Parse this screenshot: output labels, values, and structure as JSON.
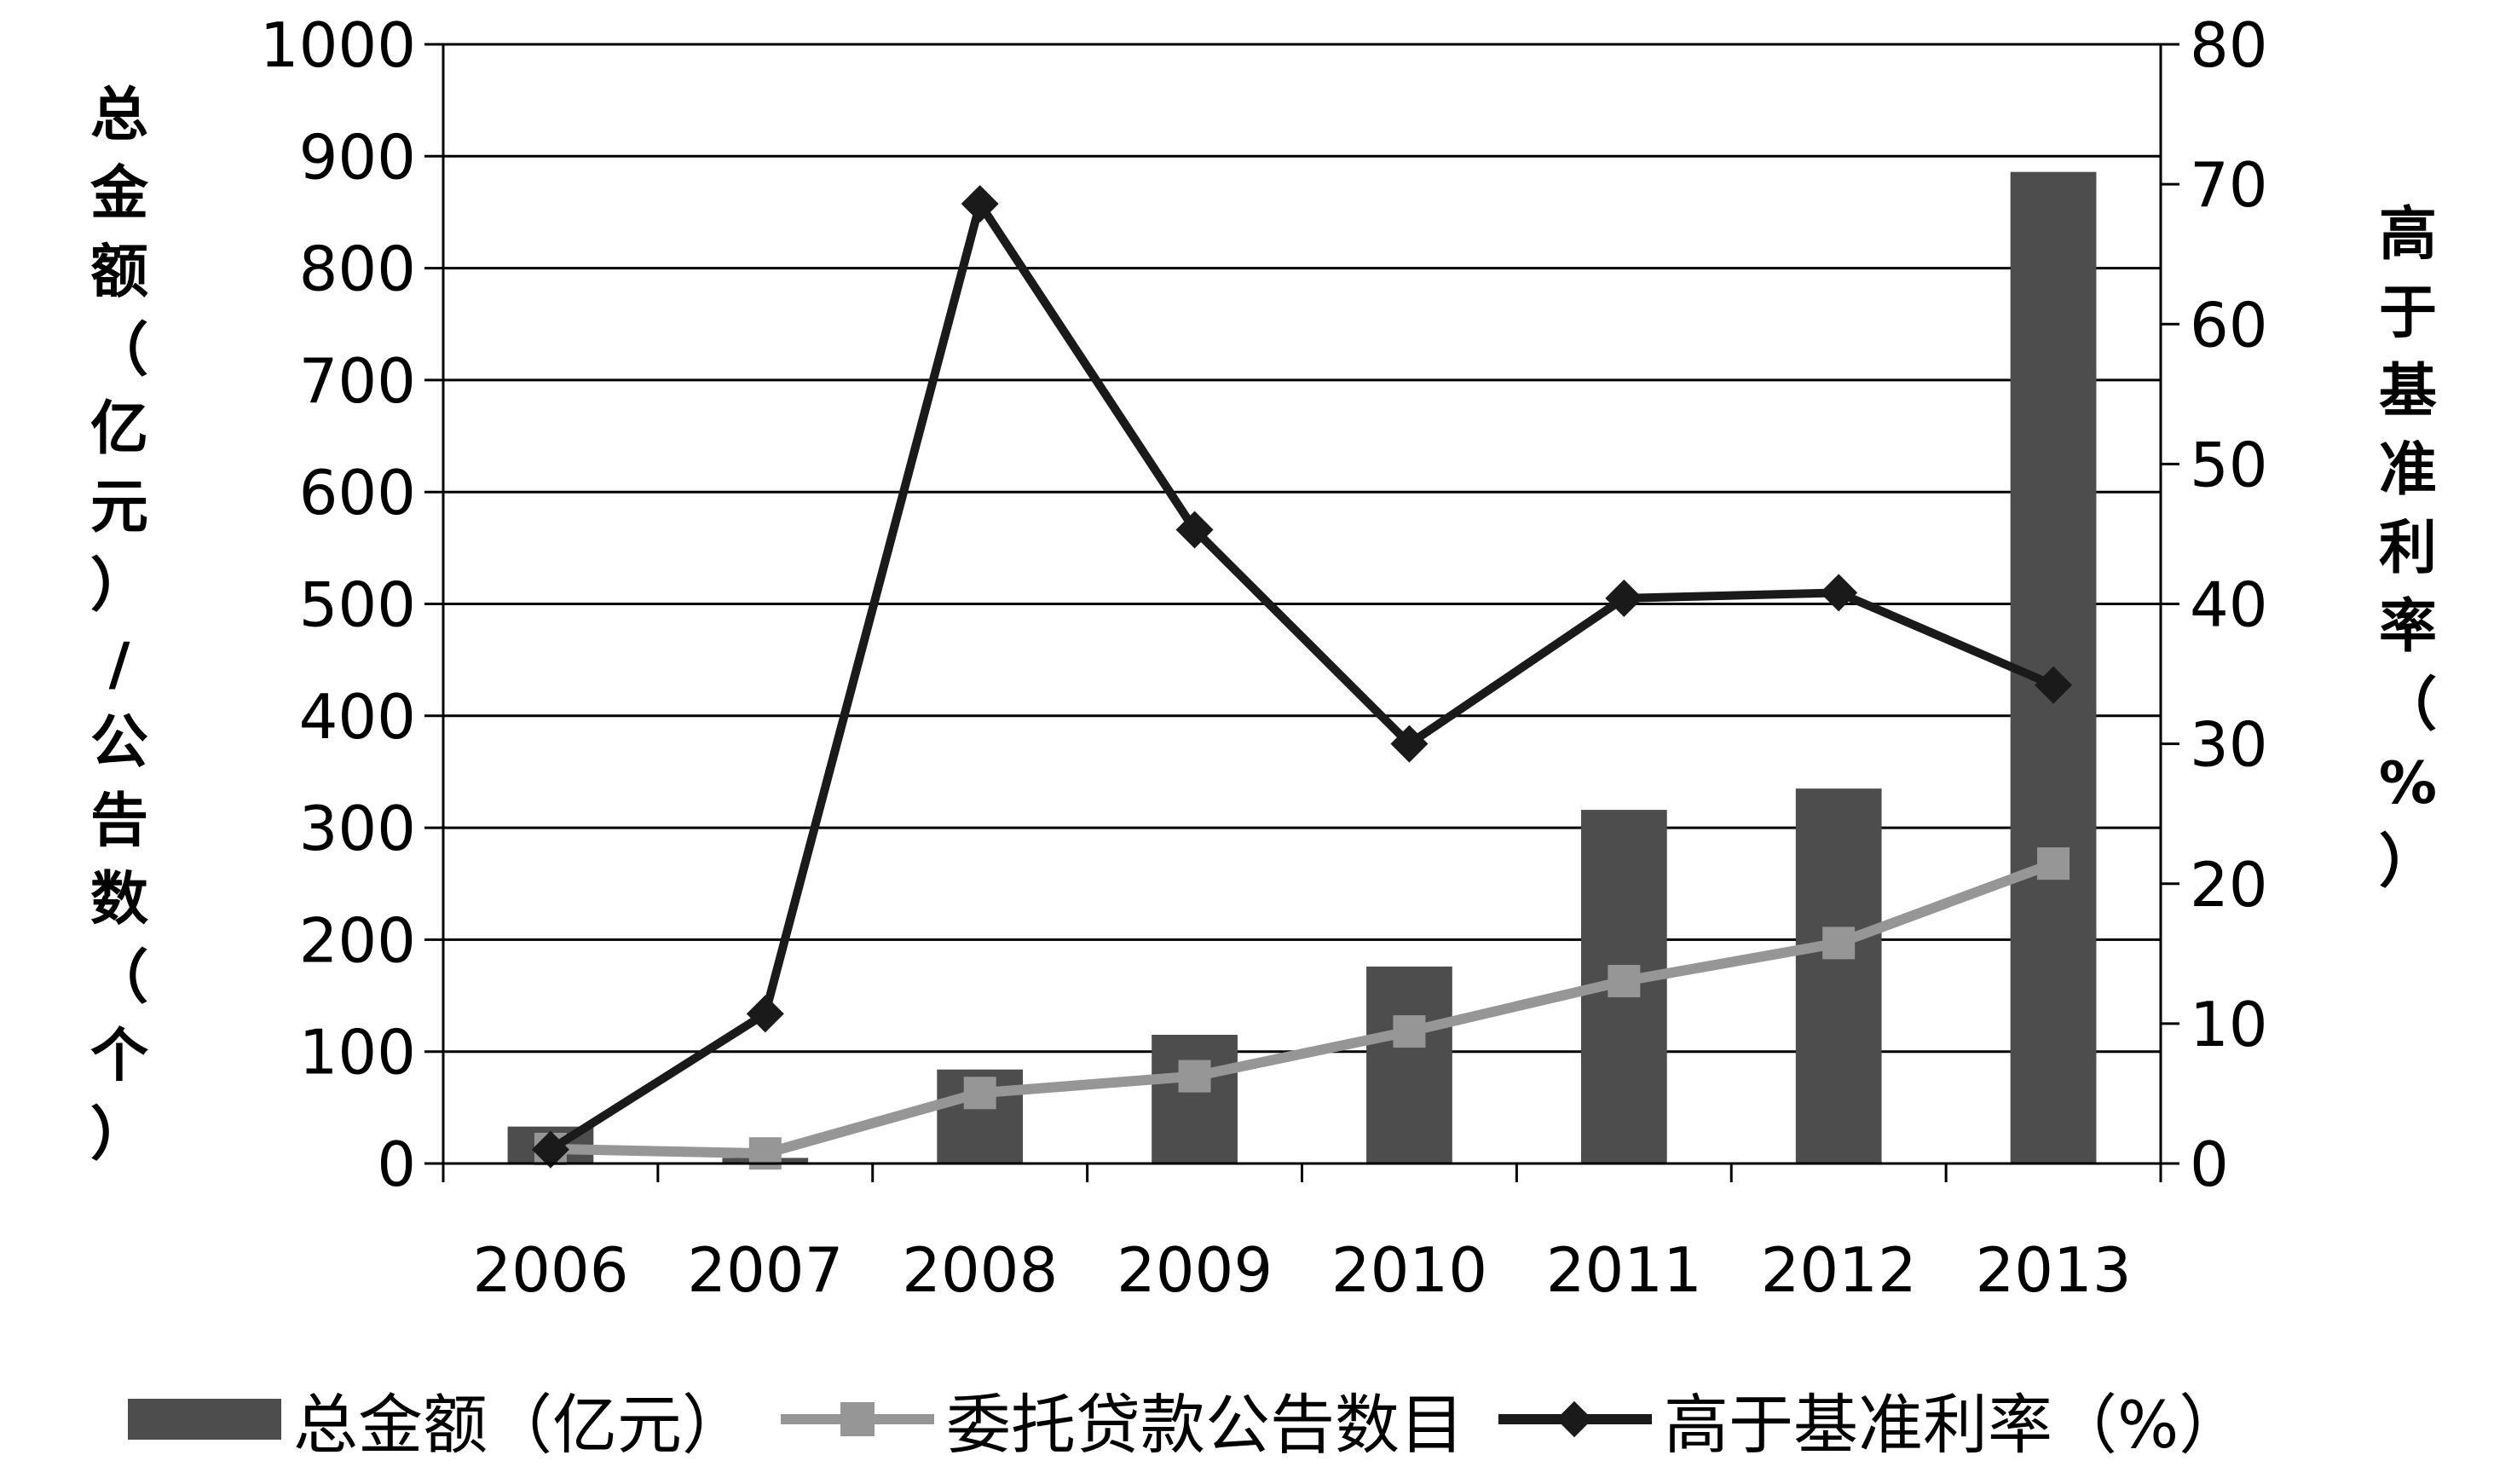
{
  "chart_data": {
    "type": "bar+line",
    "categories": [
      "2006",
      "2007",
      "2008",
      "2009",
      "2010",
      "2011",
      "2012",
      "2013"
    ],
    "series": [
      {
        "name": "总金额（亿元）",
        "kind": "bar",
        "axis": "left",
        "color": "#4d4d4d",
        "values": [
          33,
          5,
          84,
          115,
          176,
          316,
          335,
          886
        ]
      },
      {
        "name": "委托贷款公告数目",
        "kind": "line",
        "marker": "square",
        "axis": "left",
        "color": "#969696",
        "values": [
          13,
          9,
          63,
          78,
          118,
          163,
          197,
          268
        ]
      },
      {
        "name": "高于基准利率（%）",
        "kind": "line",
        "marker": "diamond",
        "axis": "right",
        "color": "#1a1a1a",
        "values": [
          1,
          10.7,
          68.6,
          45.3,
          30,
          40.4,
          40.8,
          34.2
        ]
      }
    ],
    "y_left": {
      "label": "总金额（亿元）/公告数（个）",
      "ylim": [
        0,
        1000
      ],
      "ticks": [
        "0",
        "100",
        "200",
        "300",
        "400",
        "500",
        "600",
        "700",
        "800",
        "900",
        "1000"
      ]
    },
    "y_right": {
      "label": "高于基准利率（%）",
      "ylim": [
        0,
        80
      ],
      "ticks": [
        "0",
        "10",
        "20",
        "30",
        "40",
        "50",
        "60",
        "70",
        "80"
      ]
    },
    "grid": true,
    "legend_position": "bottom"
  },
  "labels": {
    "left_axis_chars": [
      "总",
      "金",
      "额",
      "（",
      "亿",
      "元",
      "）",
      "/",
      "公",
      "告",
      "数",
      "（",
      "个",
      "）"
    ],
    "right_axis_chars": [
      "高",
      "于",
      "基",
      "准",
      "利",
      "率",
      "（",
      "%",
      "）"
    ]
  }
}
